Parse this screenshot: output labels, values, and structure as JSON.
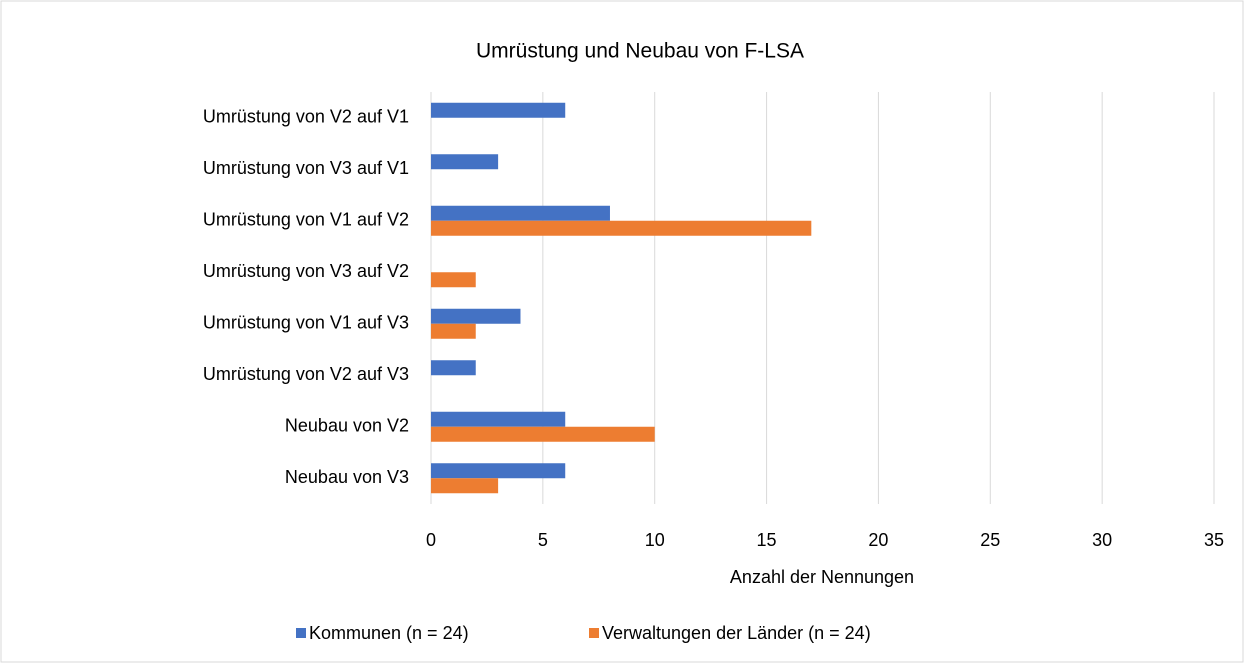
{
  "chart_data": {
    "type": "hbar",
    "title": "Umrüstung und Neubau von F-LSA",
    "categories": [
      "Umrüstung von V2 auf V1",
      "Umrüstung von V3 auf V1",
      "Umrüstung von V1 auf V2",
      "Umrüstung von V3 auf V2",
      "Umrüstung von V1 auf V3",
      "Umrüstung von V2 auf V3",
      "Neubau von V2",
      "Neubau von V3"
    ],
    "series": [
      {
        "name": "Kommunen (n = 24)",
        "color": "#4472c4",
        "values": [
          6,
          3,
          8,
          0,
          4,
          2,
          6,
          6
        ]
      },
      {
        "name": "Verwaltungen der Länder (n = 24)",
        "color": "#ed7d31",
        "values": [
          0,
          0,
          17,
          2,
          2,
          0,
          10,
          3
        ]
      }
    ],
    "x_label": "Anzahl der Nennungen",
    "xlim": [
      0,
      35
    ],
    "xticks": [
      0,
      5,
      10,
      15,
      20,
      25,
      30,
      35
    ],
    "grid": true,
    "legend": "bottom"
  }
}
